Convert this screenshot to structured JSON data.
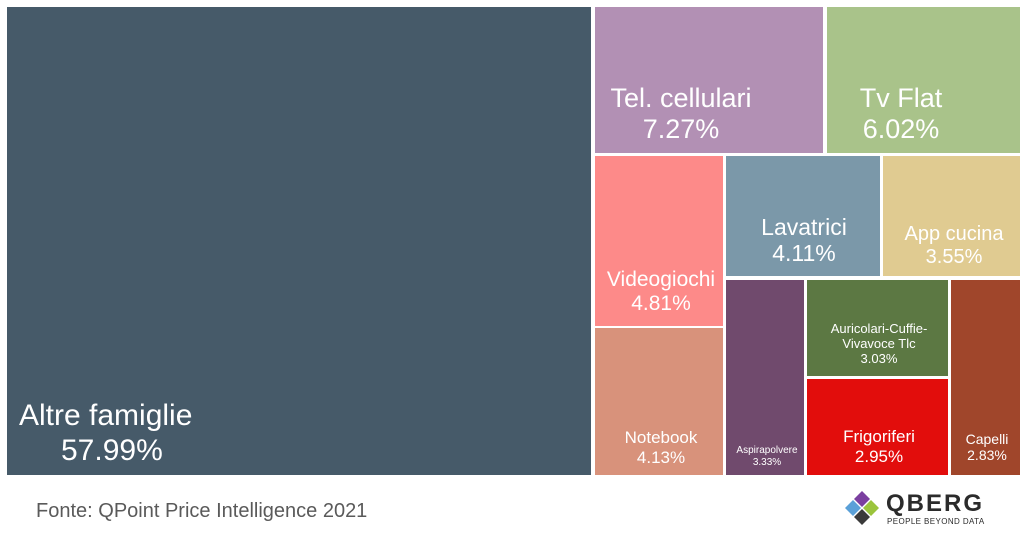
{
  "chart_data": {
    "type": "treemap",
    "unit": "%",
    "items": [
      {
        "name": "Altre famiglie",
        "value": "57.99%",
        "share": 57.99,
        "color": "#465a69"
      },
      {
        "name": "Tel. cellulari",
        "value": "7.27%",
        "share": 7.27,
        "color": "#b290b4"
      },
      {
        "name": "Tv Flat",
        "value": "6.02%",
        "share": 6.02,
        "color": "#a9c38a"
      },
      {
        "name": "Videogiochi",
        "value": "4.81%",
        "share": 4.81,
        "color": "#fd8a89"
      },
      {
        "name": "Lavatrici",
        "value": "4.11%",
        "share": 4.11,
        "color": "#7b98a9"
      },
      {
        "name": "App cucina",
        "value": "3.55%",
        "share": 3.55,
        "color": "#e0cb91"
      },
      {
        "name": "Notebook",
        "value": "4.13%",
        "share": 4.13,
        "color": "#d8927b"
      },
      {
        "name": "Aspirapolvere",
        "value": "3.33%",
        "share": 3.33,
        "color": "#704a6d"
      },
      {
        "name": "Auricolari-Cuffie-Vivavoce Tlc",
        "value": "3.03%",
        "share": 3.03,
        "color": "#5c7843"
      },
      {
        "name": "Frigoriferi",
        "value": "2.95%",
        "share": 2.95,
        "color": "#e20d0c"
      },
      {
        "name": "Capelli",
        "value": "2.83%",
        "share": 2.83,
        "color": "#a0462b"
      }
    ]
  },
  "footer": {
    "source": "Fonte: QPoint Price Intelligence 2021",
    "brand": "QBERG",
    "tagline": "PEOPLE BEYOND DATA"
  }
}
